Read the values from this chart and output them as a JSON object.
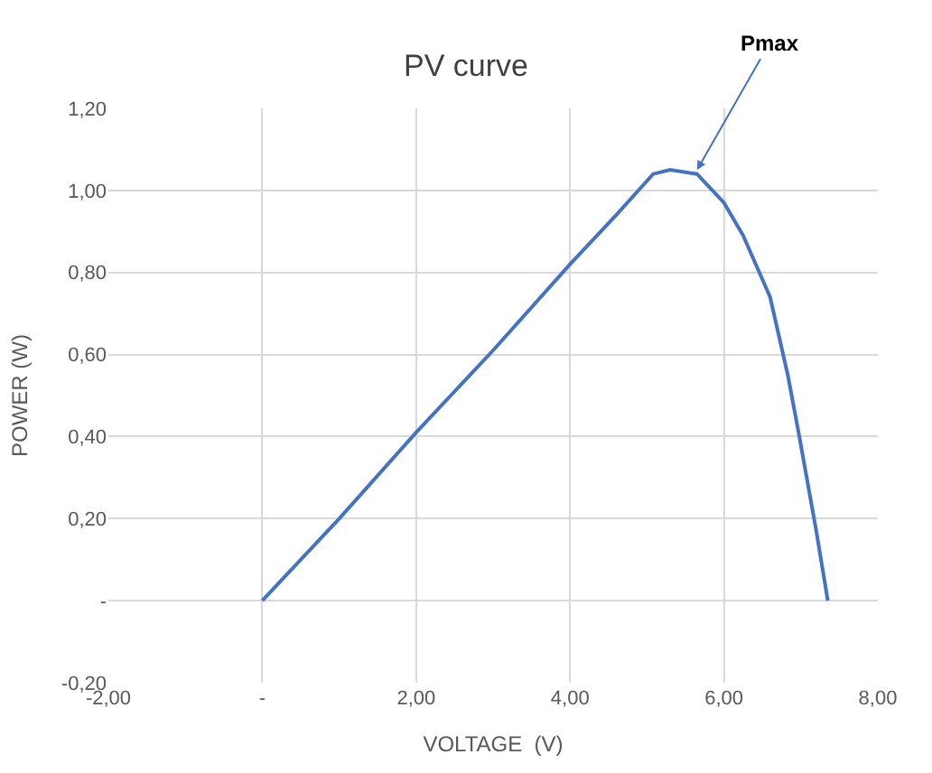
{
  "chart_data": {
    "type": "line",
    "title": "PV curve",
    "xlabel": "VOLTAGE  (V)",
    "ylabel": "POWER (W)",
    "x": [
      0,
      1,
      2,
      3,
      4,
      4.6,
      5.08,
      5.3,
      5.65,
      6.0,
      6.25,
      6.6,
      6.83,
      6.98,
      7.2,
      7.35
    ],
    "series": [
      {
        "color": "#4472c4",
        "values": [
          0,
          0.2,
          0.41,
          0.61,
          0.82,
          0.94,
          1.04,
          1.05,
          1.04,
          0.97,
          0.89,
          0.74,
          0.55,
          0.4,
          0.17,
          0
        ]
      }
    ],
    "xlim": [
      -2,
      8
    ],
    "ylim": [
      -0.2,
      1.2
    ],
    "xticks": [
      {
        "value": -2,
        "label": "-2,00"
      },
      {
        "value": 0,
        "label": "-"
      },
      {
        "value": 2,
        "label": "2,00"
      },
      {
        "value": 4,
        "label": "4,00"
      },
      {
        "value": 6,
        "label": "6,00"
      },
      {
        "value": 8,
        "label": "8,00"
      }
    ],
    "yticks": [
      {
        "value": -0.2,
        "label": "-0,20"
      },
      {
        "value": 0,
        "label": "-"
      },
      {
        "value": 0.2,
        "label": "0,20"
      },
      {
        "value": 0.4,
        "label": "0,40"
      },
      {
        "value": 0.6,
        "label": "0,60"
      },
      {
        "value": 0.8,
        "label": "0,80"
      },
      {
        "value": 1.0,
        "label": "1,00"
      },
      {
        "value": 1.2,
        "label": "1,20"
      }
    ],
    "annotations": [
      {
        "text": "Pmax",
        "x": 5.65,
        "y": 1.05
      }
    ],
    "grid": true,
    "marker": "none",
    "line_style": "solid",
    "legend": false
  }
}
